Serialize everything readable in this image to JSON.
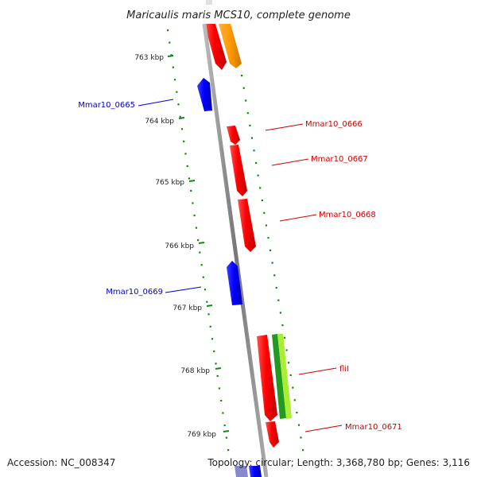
{
  "title": "Maricaulis maris MCS10, complete genome",
  "accession": "Accession: NC_008347",
  "topology": "Topology: circular; Length: 3,368,780 bp; Genes: 3,116",
  "ticks": [
    "763 kbp",
    "764 kbp",
    "765 kbp",
    "766 kbp",
    "767 kbp",
    "768 kbp",
    "769 kbp"
  ],
  "genes": [
    {
      "label": "Mmar10_0665",
      "strand": "reverse",
      "color": "#0000cc"
    },
    {
      "label": "Mmar10_0666",
      "strand": "forward",
      "color": "#cc0000"
    },
    {
      "label": "Mmar10_0667",
      "strand": "forward",
      "color": "#cc0000"
    },
    {
      "label": "Mmar10_0668",
      "strand": "forward",
      "color": "#cc0000"
    },
    {
      "label": "Mmar10_0669",
      "strand": "reverse",
      "color": "#0000cc"
    },
    {
      "label": "fliI",
      "strand": "forward",
      "color": "#cc0000"
    },
    {
      "label": "Mmar10_0671",
      "strand": "forward",
      "color": "#cc0000"
    }
  ],
  "colors": {
    "forward_gene": "#ff0000",
    "reverse_gene": "#0000ff",
    "orange_gene": "#ff9900",
    "green_feature": "#22aa22",
    "lime_feature": "#aaff44",
    "backbone": "#888888",
    "tick_marks": "#118811"
  }
}
